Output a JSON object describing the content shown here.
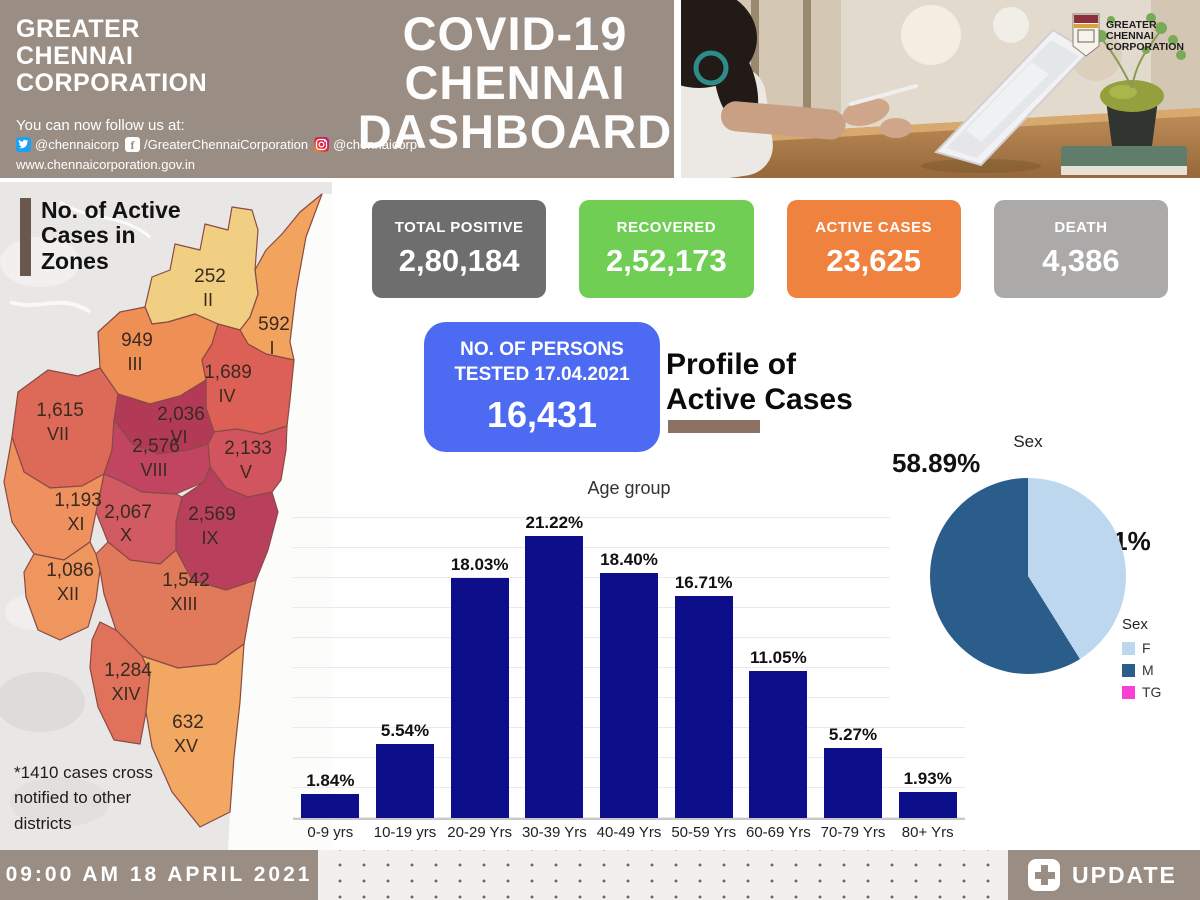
{
  "header": {
    "org_name": "GREATER\nCHENNAI\nCORPORATION",
    "follow_label": "You can now follow us at:",
    "social": [
      {
        "icon": "twitter-icon",
        "handle": "@chennaicorp"
      },
      {
        "icon": "facebook-icon",
        "handle": "/GreaterChennaiCorporation"
      },
      {
        "icon": "instagram-icon",
        "handle": "@chennaicorp"
      }
    ],
    "website": "www.chennaicorporation.gov.in",
    "title": "COVID-19\nCHENNAI\nDASHBOARD",
    "logo_text_line1": "GREATER",
    "logo_text_line2": "CHENNAI",
    "logo_text_line3": "CORPORATION"
  },
  "map": {
    "heading": "No. of Active\nCases in\nZones",
    "note": "*1410 cases cross\nnotified to other\ndistricts",
    "zones": [
      {
        "zone": "I",
        "cases": "592",
        "color": "#F2A35E"
      },
      {
        "zone": "II",
        "cases": "252",
        "color": "#F0CF82"
      },
      {
        "zone": "III",
        "cases": "949",
        "color": "#EE8F55"
      },
      {
        "zone": "IV",
        "cases": "1,689",
        "color": "#DC6056"
      },
      {
        "zone": "V",
        "cases": "2,133",
        "color": "#D2545E"
      },
      {
        "zone": "VI",
        "cases": "2,036",
        "color": "#B23A56"
      },
      {
        "zone": "VII",
        "cases": "1,615",
        "color": "#DD6A58"
      },
      {
        "zone": "VIII",
        "cases": "2,576",
        "color": "#C14560"
      },
      {
        "zone": "IX",
        "cases": "2,569",
        "color": "#B8405C"
      },
      {
        "zone": "X",
        "cases": "2,067",
        "color": "#D25A62"
      },
      {
        "zone": "XI",
        "cases": "1,193",
        "color": "#EF915F"
      },
      {
        "zone": "XII",
        "cases": "1,086",
        "color": "#EF965F"
      },
      {
        "zone": "XIII",
        "cases": "1,542",
        "color": "#E17A5A"
      },
      {
        "zone": "XIV",
        "cases": "1,284",
        "color": "#E0725C"
      },
      {
        "zone": "XV",
        "cases": "632",
        "color": "#F2A763"
      }
    ]
  },
  "stats": [
    {
      "label": "TOTAL POSITIVE",
      "value": "2,80,184",
      "color": "#6E6E6E"
    },
    {
      "label": "RECOVERED",
      "value": "2,52,173",
      "color": "#71CE55"
    },
    {
      "label": "ACTIVE CASES",
      "value": "23,625",
      "color": "#F0823F"
    },
    {
      "label": "DEATH",
      "value": "4,386",
      "color": "#ACA9A9"
    }
  ],
  "tested": {
    "label": "NO. OF PERSONS\nTESTED 17.04.2021",
    "value": "16,431",
    "color": "#4D6BF2"
  },
  "profile_heading": "Profile of\nActive Cases",
  "chart_data": [
    {
      "type": "bar",
      "title": "Age group",
      "categories": [
        "0-9 yrs",
        "10-19 yrs",
        "20-29 Yrs",
        "30-39 Yrs",
        "40-49 Yrs",
        "50-59 Yrs",
        "60-69 Yrs",
        "70-79 Yrs",
        "80+ Yrs"
      ],
      "values": [
        1.84,
        5.54,
        18.03,
        21.22,
        18.4,
        16.71,
        11.05,
        5.27,
        1.93
      ],
      "value_labels": [
        "1.84%",
        "5.54%",
        "18.03%",
        "21.22%",
        "18.40%",
        "16.71%",
        "11.05%",
        "5.27%",
        "1.93%"
      ],
      "xlabel": "Age group",
      "ylabel": "",
      "ylim": [
        0,
        24
      ],
      "grid": true,
      "bar_color": "#0D0E8A"
    },
    {
      "type": "pie",
      "title": "Sex",
      "legend_title": "Sex",
      "legend_position": "bottom-right",
      "slices": [
        {
          "label": "F",
          "value": 41.11,
          "display": "41.11%",
          "color": "#BDD7EE"
        },
        {
          "label": "M",
          "value": 58.89,
          "display": "58.89%",
          "color": "#2B5D8A"
        },
        {
          "label": "TG",
          "value": 0,
          "display": "",
          "color": "#FA3FD3"
        }
      ]
    }
  ],
  "footer": {
    "timestamp": "09:00 AM 18 APRIL 2021",
    "update_label": "UPDATE"
  }
}
